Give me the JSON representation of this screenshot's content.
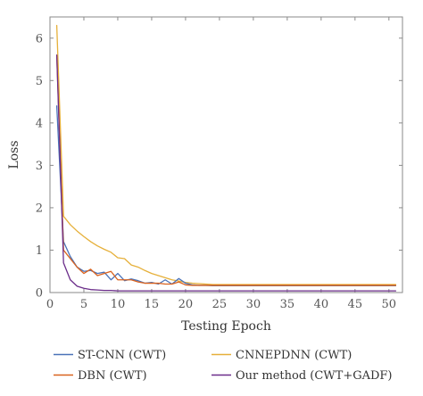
{
  "chart_data": {
    "type": "line",
    "title": "",
    "xlabel": "Testing Epoch",
    "ylabel": "Loss",
    "xlim": [
      0,
      52
    ],
    "ylim": [
      0,
      6.5
    ],
    "xticks": [
      0,
      5,
      10,
      15,
      20,
      25,
      30,
      35,
      40,
      45,
      50
    ],
    "yticks": [
      0,
      1,
      2,
      3,
      4,
      5,
      6
    ],
    "grid": false,
    "legend_position": "bottom, below plot",
    "series": [
      {
        "name": "ST-CNN (CWT)",
        "color": "#4a72b8",
        "x": [
          1,
          2,
          3,
          4,
          5,
          6,
          7,
          8,
          9,
          10,
          11,
          12,
          13,
          14,
          15,
          16,
          17,
          18,
          19,
          20,
          21,
          22,
          23,
          24,
          25,
          26,
          27,
          28,
          29,
          30,
          31,
          32,
          33,
          34,
          35,
          36,
          37,
          38,
          39,
          40,
          41,
          42,
          43,
          44,
          45,
          46,
          47,
          48,
          49,
          50,
          51
        ],
        "y": [
          4.4,
          1.2,
          0.85,
          0.6,
          0.5,
          0.52,
          0.45,
          0.48,
          0.3,
          0.45,
          0.28,
          0.32,
          0.28,
          0.22,
          0.24,
          0.2,
          0.3,
          0.2,
          0.33,
          0.22,
          0.18,
          0.17,
          0.17,
          0.16,
          0.16,
          0.16,
          0.16,
          0.16,
          0.16,
          0.16,
          0.16,
          0.16,
          0.16,
          0.16,
          0.16,
          0.16,
          0.16,
          0.16,
          0.16,
          0.16,
          0.16,
          0.16,
          0.16,
          0.16,
          0.16,
          0.16,
          0.16,
          0.16,
          0.16,
          0.16,
          0.16
        ]
      },
      {
        "name": "DBN (CWT)",
        "color": "#d9621e",
        "x": [
          1,
          2,
          3,
          4,
          5,
          6,
          7,
          8,
          9,
          10,
          11,
          12,
          13,
          14,
          15,
          16,
          17,
          18,
          19,
          20,
          21,
          22,
          23,
          24,
          25,
          26,
          27,
          28,
          29,
          30,
          31,
          32,
          33,
          34,
          35,
          36,
          37,
          38,
          39,
          40,
          41,
          42,
          43,
          44,
          45,
          46,
          47,
          48,
          49,
          50,
          51
        ],
        "y": [
          5.6,
          1.0,
          0.8,
          0.6,
          0.45,
          0.55,
          0.4,
          0.45,
          0.5,
          0.3,
          0.3,
          0.3,
          0.25,
          0.22,
          0.22,
          0.22,
          0.2,
          0.2,
          0.25,
          0.18,
          0.17,
          0.17,
          0.17,
          0.17,
          0.17,
          0.17,
          0.17,
          0.17,
          0.17,
          0.17,
          0.17,
          0.17,
          0.17,
          0.17,
          0.17,
          0.17,
          0.17,
          0.17,
          0.17,
          0.17,
          0.17,
          0.17,
          0.17,
          0.17,
          0.17,
          0.17,
          0.17,
          0.17,
          0.17,
          0.17,
          0.17
        ]
      },
      {
        "name": "CNNEPDNN (CWT)",
        "color": "#e6b03a",
        "x": [
          1,
          2,
          3,
          4,
          5,
          6,
          7,
          8,
          9,
          10,
          11,
          12,
          13,
          14,
          15,
          16,
          17,
          18,
          19,
          20,
          21,
          22,
          23,
          24,
          25,
          26,
          27,
          28,
          29,
          30,
          31,
          32,
          33,
          34,
          35,
          36,
          37,
          38,
          39,
          40,
          41,
          42,
          43,
          44,
          45,
          46,
          47,
          48,
          49,
          50,
          51
        ],
        "y": [
          6.3,
          1.8,
          1.6,
          1.45,
          1.32,
          1.2,
          1.1,
          1.02,
          0.95,
          0.82,
          0.8,
          0.65,
          0.6,
          0.52,
          0.45,
          0.4,
          0.35,
          0.3,
          0.27,
          0.24,
          0.22,
          0.21,
          0.2,
          0.19,
          0.19,
          0.19,
          0.19,
          0.19,
          0.19,
          0.19,
          0.19,
          0.19,
          0.19,
          0.19,
          0.19,
          0.19,
          0.19,
          0.19,
          0.19,
          0.19,
          0.19,
          0.19,
          0.19,
          0.19,
          0.19,
          0.19,
          0.19,
          0.19,
          0.19,
          0.19,
          0.19
        ]
      },
      {
        "name": "Our method (CWT+GADF)",
        "color": "#6b2d8a",
        "x": [
          1,
          2,
          3,
          4,
          5,
          6,
          7,
          8,
          9,
          10,
          11,
          12,
          13,
          14,
          15,
          16,
          17,
          18,
          19,
          20,
          21,
          22,
          23,
          24,
          25,
          26,
          27,
          28,
          29,
          30,
          31,
          32,
          33,
          34,
          35,
          36,
          37,
          38,
          39,
          40,
          41,
          42,
          43,
          44,
          45,
          46,
          47,
          48,
          49,
          50,
          51
        ],
        "y": [
          5.6,
          0.7,
          0.3,
          0.15,
          0.1,
          0.07,
          0.06,
          0.05,
          0.05,
          0.04,
          0.04,
          0.04,
          0.04,
          0.04,
          0.04,
          0.04,
          0.04,
          0.04,
          0.04,
          0.04,
          0.04,
          0.04,
          0.04,
          0.04,
          0.04,
          0.04,
          0.04,
          0.04,
          0.04,
          0.04,
          0.04,
          0.04,
          0.04,
          0.04,
          0.04,
          0.04,
          0.04,
          0.04,
          0.04,
          0.04,
          0.04,
          0.04,
          0.04,
          0.04,
          0.04,
          0.04,
          0.04,
          0.04,
          0.04,
          0.04,
          0.04
        ]
      }
    ]
  }
}
